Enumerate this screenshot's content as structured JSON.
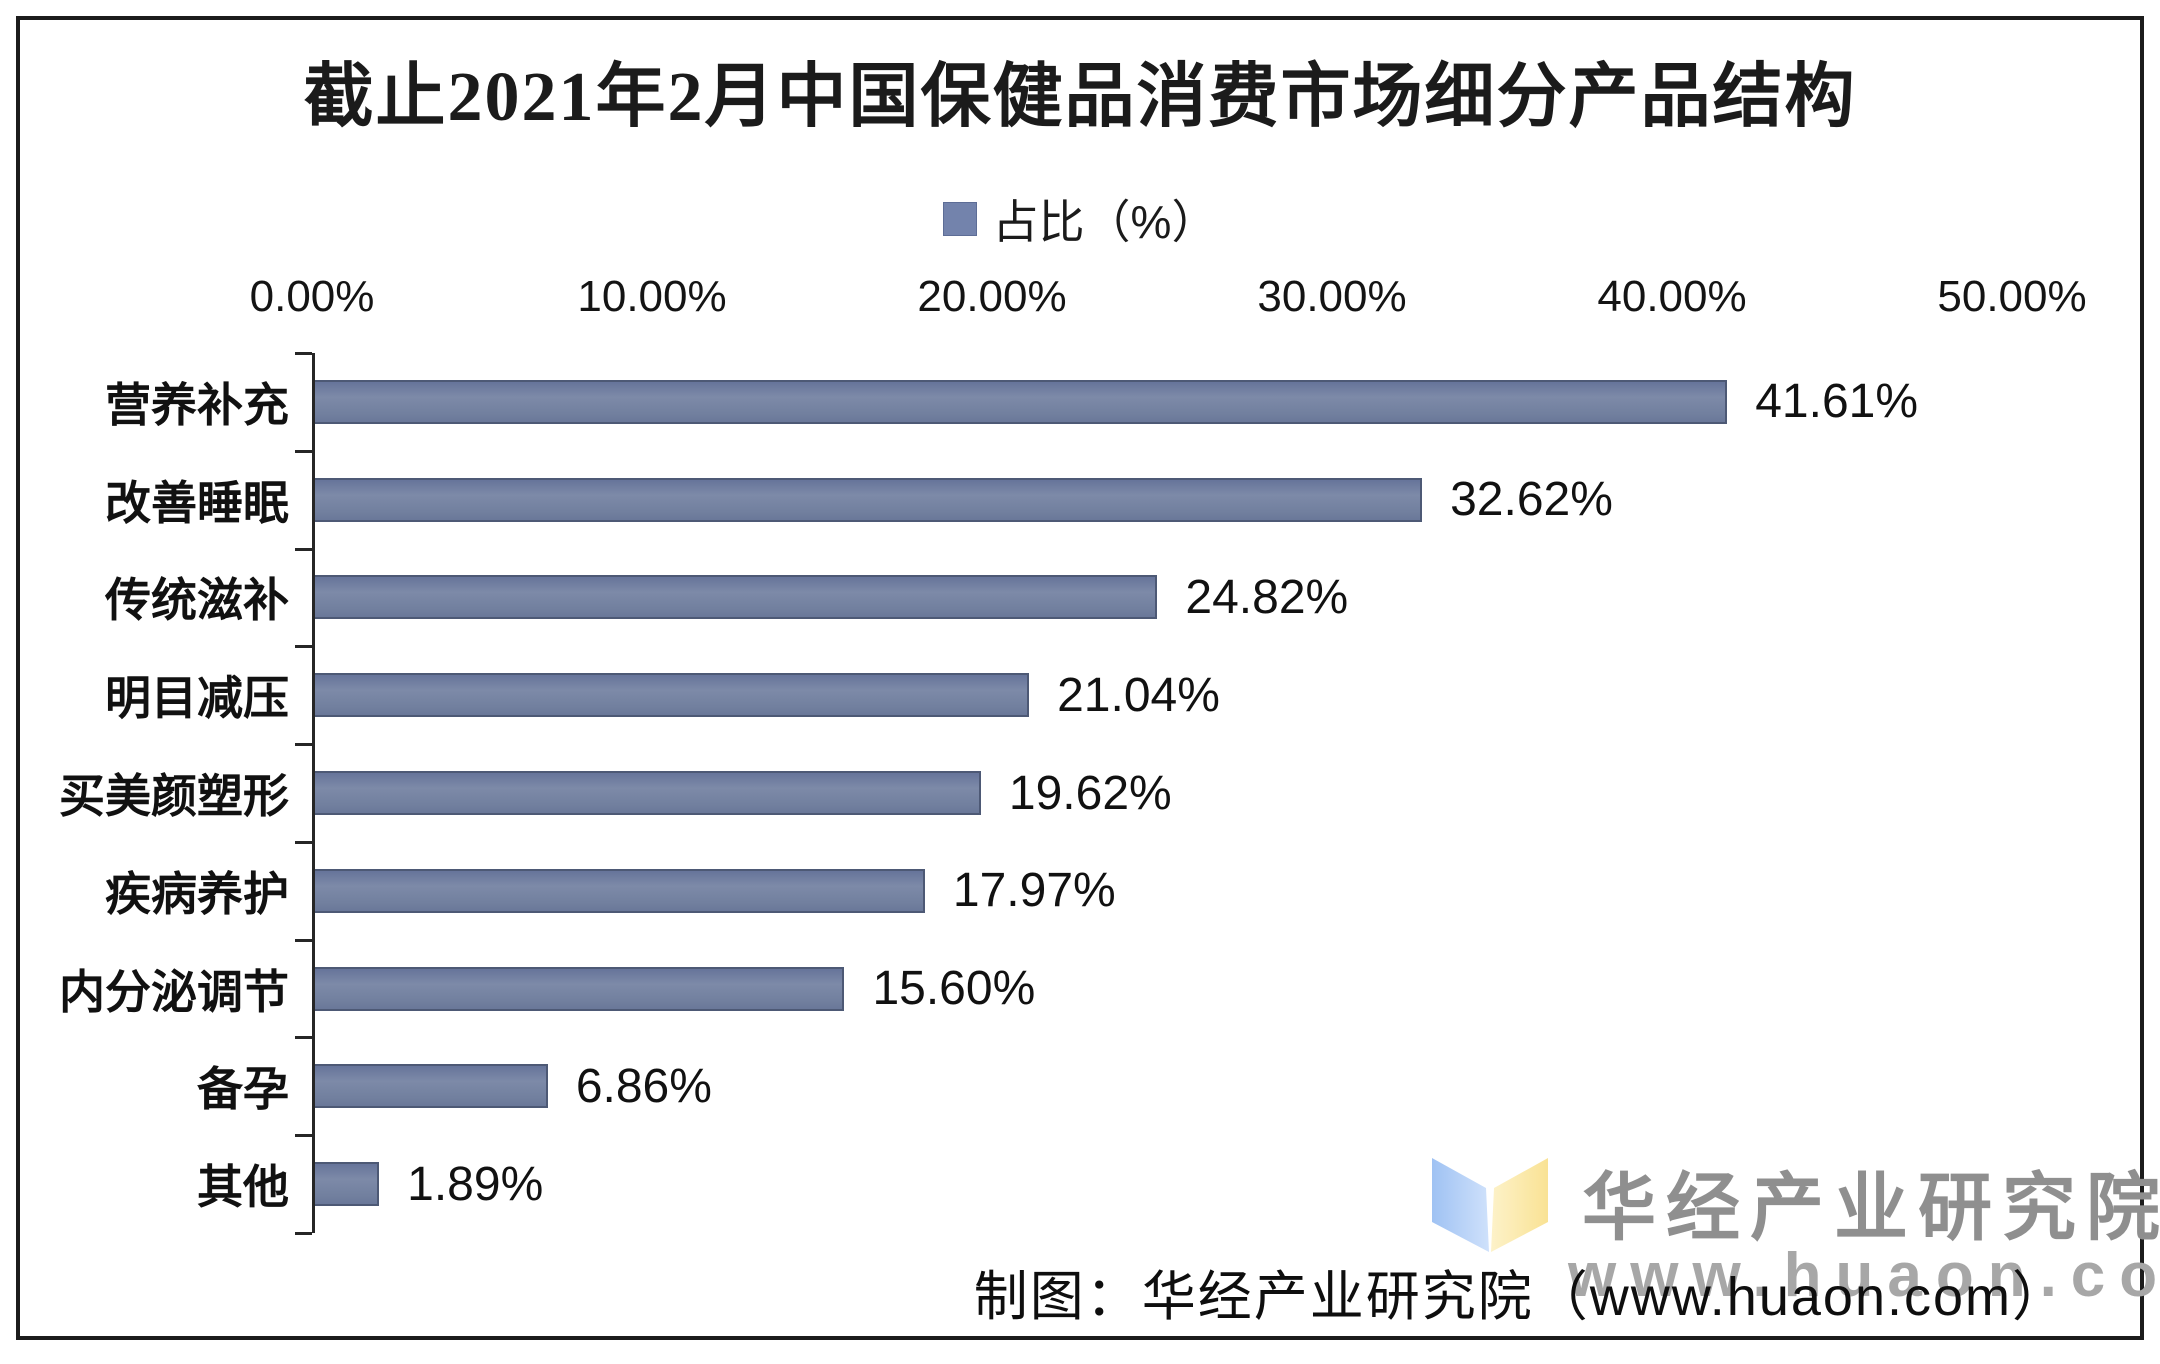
{
  "title": "截止2021年2月中国保健品消费市场细分产品结构",
  "legend": {
    "label": "占比（%）",
    "swatch_color": "#7383ac"
  },
  "chart_data": {
    "type": "bar",
    "orientation": "horizontal",
    "title": "截止2021年2月中国保健品消费市场细分产品结构",
    "categories": [
      "营养补充",
      "改善睡眠",
      "传统滋补",
      "明目减压",
      "买美颜塑形",
      "疾病养护",
      "内分泌调节",
      "备孕",
      "其他"
    ],
    "values": [
      41.61,
      32.62,
      24.82,
      21.04,
      19.62,
      17.97,
      15.6,
      6.86,
      1.89
    ],
    "value_labels": [
      "41.61%",
      "32.62%",
      "24.82%",
      "21.04%",
      "19.62%",
      "17.97%",
      "15.60%",
      "6.86%",
      "1.89%"
    ],
    "x_ticks": [
      "0.00%",
      "10.00%",
      "20.00%",
      "30.00%",
      "40.00%",
      "50.00%"
    ],
    "x_tick_values": [
      0,
      10,
      20,
      30,
      40,
      50
    ],
    "xlim": [
      0,
      50
    ],
    "legend": [
      "占比（%）"
    ],
    "legend_position": "top-center",
    "grid": false,
    "bar_color": "#72809f"
  },
  "footer": {
    "caption": "制图：华经产业研究院（www.huaon.com）"
  },
  "watermark": {
    "org": "华经产业研究院",
    "url": "www.huaon.com",
    "logo_blue": "#a9c8f4",
    "logo_yellow": "#fbe8a3"
  }
}
